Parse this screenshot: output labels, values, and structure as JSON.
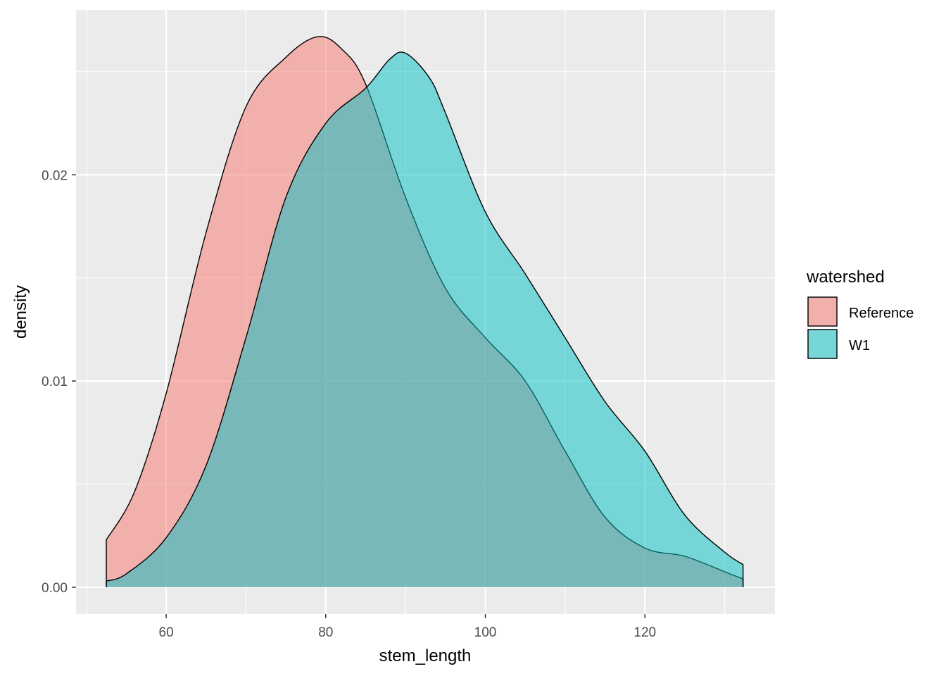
{
  "chart_data": {
    "type": "area",
    "subtype": "density",
    "xlabel": "stem_length",
    "ylabel": "density",
    "xlim": [
      48.7,
      136.3
    ],
    "ylim": [
      -0.0013,
      0.028
    ],
    "xticks": [
      60,
      80,
      100,
      120
    ],
    "xtick_labels": [
      "60",
      "80",
      "100",
      "120"
    ],
    "yticks": [
      0.0,
      0.01,
      0.02
    ],
    "ytick_labels": [
      "0.00",
      "0.01",
      "0.02"
    ],
    "grid": true,
    "legend": {
      "title": "watershed",
      "placement": "right"
    },
    "series": [
      {
        "name": "Reference",
        "color": "#F8766D",
        "alpha": 0.5,
        "x": [
          52.5,
          56,
          60,
          65,
          70,
          75,
          79,
          82,
          85,
          90,
          95,
          100,
          105,
          110,
          115,
          120,
          125,
          130,
          132.3
        ],
        "y": [
          0.0023,
          0.0046,
          0.0094,
          0.0172,
          0.0233,
          0.0257,
          0.0267,
          0.0261,
          0.0244,
          0.0189,
          0.0145,
          0.0121,
          0.01,
          0.0066,
          0.0034,
          0.0019,
          0.0015,
          0.00075,
          0.0004
        ]
      },
      {
        "name": "W1",
        "color": "#00BFC4",
        "alpha": 0.5,
        "x": [
          52.5,
          55,
          60,
          65,
          70,
          75,
          80,
          85,
          88,
          90,
          93,
          95,
          100,
          105,
          110,
          115,
          120,
          125,
          130,
          132.3
        ],
        "y": [
          0.0003,
          0.00065,
          0.0024,
          0.0059,
          0.0121,
          0.0189,
          0.0225,
          0.0242,
          0.0256,
          0.0259,
          0.0247,
          0.023,
          0.0182,
          0.0152,
          0.0121,
          0.009,
          0.0066,
          0.0035,
          0.0017,
          0.0011
        ]
      }
    ]
  }
}
